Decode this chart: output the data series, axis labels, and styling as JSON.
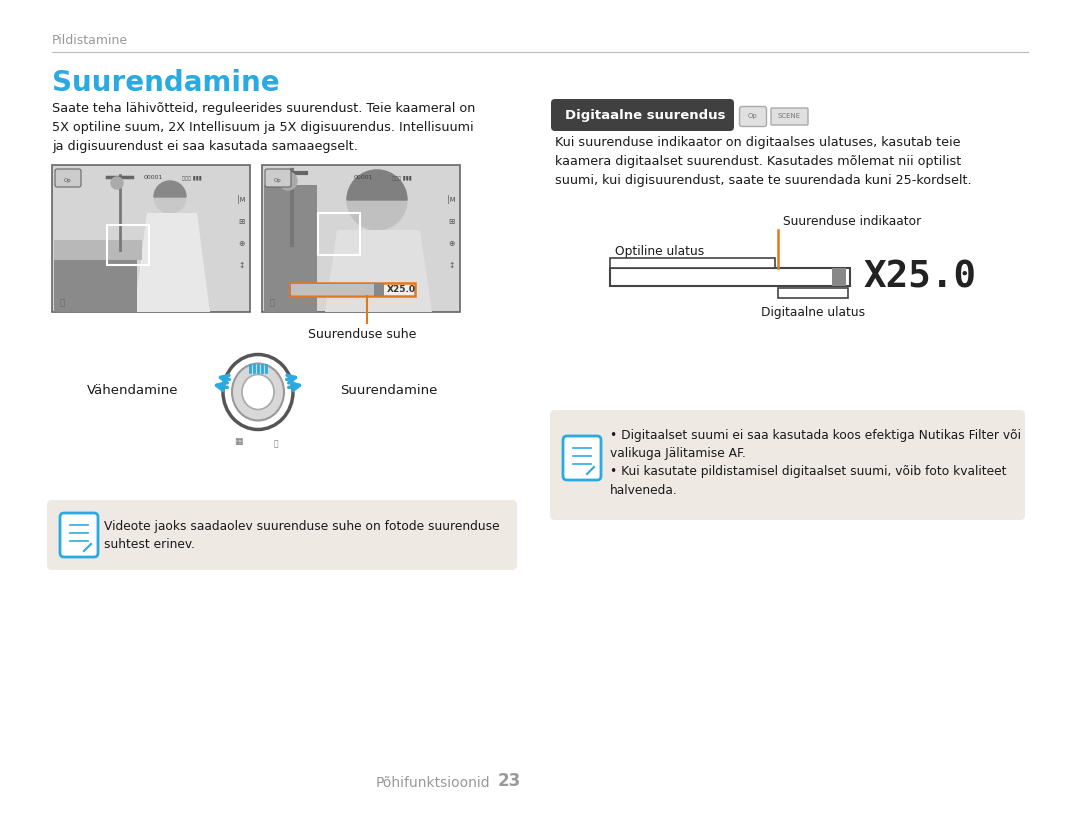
{
  "page_title": "Pildistamine",
  "section_title": "Suurendamine",
  "section_title_color": "#29ABE2",
  "body_text_left": "Saate teha lähivõtteid, reguleerides suurendust. Teie kaameral on\n5X optiline suum, 2X Intellisuum ja 5X digisuurendus. Intellisuumi\nja digisuurendust ei saa kasutada samaaegselt.",
  "label_suhe": "Suurenduse suhe",
  "label_vahendamine": "Vähendamine",
  "label_suurendamine_btn": "Suurendamine",
  "note_left": "Videote jaoks saadaolev suurenduse suhe on fotode suurenduse\nsuhtest erinev.",
  "right_header": "Digitaalne suurendus",
  "right_header_bg": "#404040",
  "right_header_color": "#ffffff",
  "body_text_right": "Kui suurenduse indikaator on digitaalses ulatuses, kasutab teie\nkaamera digitaalset suurendust. Kasutades mõlemat nii optilist\nsuumi, kui digisuurendust, saate te suurendada kuni 25-kordselt.",
  "label_optiline": "Optiline ulatus",
  "label_indikaator": "Suurenduse indikaator",
  "label_digitaalne": "Digitaalne ulatus",
  "zoom_value": "X25.0",
  "note_right_1": "Digitaalset suumi ei saa kasutada koos efektiga Nutikas Filter või\nvalikuga Jälitamise AF.",
  "note_right_2": "Kui kasutate pildistamisel digitaalset suumi, võib foto kvaliteet\nhalveneda.",
  "footer_text": "Põhifunktsioonid",
  "footer_number": "23",
  "bg_color": "#ffffff",
  "note_bg_color": "#eeeae3",
  "line_color": "#bbbbbb",
  "text_color": "#1a1a1a",
  "gray_text_color": "#999999",
  "orange_color": "#e07820",
  "blue_color": "#29ABE2",
  "cam_bg": "#d0d0d0",
  "dark_gray": "#888888"
}
